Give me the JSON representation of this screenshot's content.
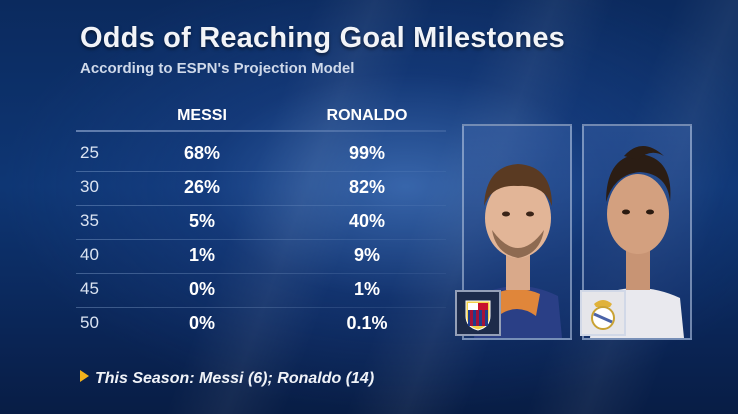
{
  "title": "Odds of Reaching Goal Milestones",
  "subtitle": "According to ESPN's Projection Model",
  "columns": {
    "messi": "MESSI",
    "ronaldo": "RONALDO"
  },
  "rows": [
    {
      "milestone": "25",
      "messi": "68%",
      "ronaldo": "99%"
    },
    {
      "milestone": "30",
      "messi": "26%",
      "ronaldo": "82%"
    },
    {
      "milestone": "35",
      "messi": "5%",
      "ronaldo": "40%"
    },
    {
      "milestone": "40",
      "messi": "1%",
      "ronaldo": "9%"
    },
    {
      "milestone": "45",
      "messi": "0%",
      "ronaldo": "1%"
    },
    {
      "milestone": "50",
      "messi": "0%",
      "ronaldo": "0.1%"
    }
  ],
  "footer": "This Season: Messi (6); Ronaldo (14)",
  "colors": {
    "accent": "#f2b21c",
    "barcelona_blue": "#1f3d8c",
    "barcelona_red": "#a3123a",
    "background": "#0e3674"
  },
  "icons": {
    "footer_marker": "triangle-right-icon",
    "barcelona": "barcelona-crest-icon",
    "real_madrid": "real-madrid-crest-icon"
  }
}
